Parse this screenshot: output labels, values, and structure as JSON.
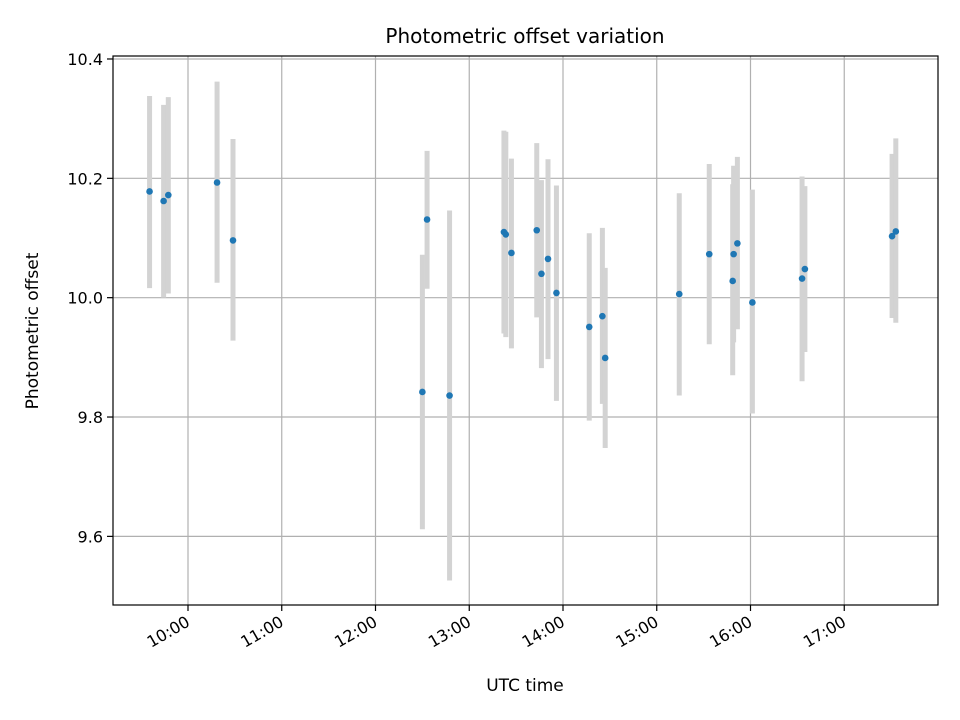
{
  "chart_data": {
    "type": "scatter",
    "title": "Photometric offset variation",
    "xlabel": "UTC time",
    "ylabel": "Photometric offset",
    "x_unit": "UTC hours",
    "xlim": [
      9.2,
      18.0
    ],
    "ylim": [
      9.485,
      10.405
    ],
    "x_ticks": [
      {
        "value": 10,
        "label": "10:00"
      },
      {
        "value": 11,
        "label": "11:00"
      },
      {
        "value": 12,
        "label": "12:00"
      },
      {
        "value": 13,
        "label": "13:00"
      },
      {
        "value": 14,
        "label": "14:00"
      },
      {
        "value": 15,
        "label": "15:00"
      },
      {
        "value": 16,
        "label": "16:00"
      },
      {
        "value": 17,
        "label": "17:00"
      }
    ],
    "y_ticks": [
      {
        "value": 9.6,
        "label": "9.6"
      },
      {
        "value": 9.8,
        "label": "9.8"
      },
      {
        "value": 10.0,
        "label": "10.0"
      },
      {
        "value": 10.2,
        "label": "10.2"
      },
      {
        "value": 10.4,
        "label": "10.4"
      }
    ],
    "grid": true,
    "colors": {
      "point": "#1f77b4",
      "errorbar": "#d3d3d3",
      "grid": "#b0b0b0",
      "axes": "#000000"
    },
    "points": [
      {
        "time": "09:35",
        "x": 9.59,
        "y": 10.178,
        "ylow": 10.016,
        "yhigh": 10.338
      },
      {
        "time": "09:44",
        "x": 9.74,
        "y": 10.162,
        "ylow": 10.0,
        "yhigh": 10.323
      },
      {
        "time": "09:47",
        "x": 9.79,
        "y": 10.172,
        "ylow": 10.007,
        "yhigh": 10.336
      },
      {
        "time": "10:18",
        "x": 10.31,
        "y": 10.193,
        "ylow": 10.025,
        "yhigh": 10.362
      },
      {
        "time": "10:28",
        "x": 10.48,
        "y": 10.096,
        "ylow": 9.928,
        "yhigh": 10.266
      },
      {
        "time": "12:30",
        "x": 12.5,
        "y": 9.842,
        "ylow": 9.612,
        "yhigh": 10.072
      },
      {
        "time": "12:33",
        "x": 12.55,
        "y": 10.131,
        "ylow": 10.015,
        "yhigh": 10.246
      },
      {
        "time": "12:47",
        "x": 12.79,
        "y": 9.836,
        "ylow": 9.526,
        "yhigh": 10.146
      },
      {
        "time": "13:22",
        "x": 13.37,
        "y": 10.11,
        "ylow": 9.94,
        "yhigh": 10.28
      },
      {
        "time": "13:23",
        "x": 13.39,
        "y": 10.106,
        "ylow": 9.934,
        "yhigh": 10.278
      },
      {
        "time": "13:27",
        "x": 13.45,
        "y": 10.075,
        "ylow": 9.915,
        "yhigh": 10.233
      },
      {
        "time": "13:43",
        "x": 13.72,
        "y": 10.113,
        "ylow": 9.967,
        "yhigh": 10.259
      },
      {
        "time": "13:46",
        "x": 13.77,
        "y": 10.04,
        "ylow": 9.882,
        "yhigh": 10.197
      },
      {
        "time": "13:50",
        "x": 13.84,
        "y": 10.065,
        "ylow": 9.897,
        "yhigh": 10.232
      },
      {
        "time": "13:56",
        "x": 13.93,
        "y": 10.008,
        "ylow": 9.827,
        "yhigh": 10.188
      },
      {
        "time": "14:17",
        "x": 14.28,
        "y": 9.951,
        "ylow": 9.794,
        "yhigh": 10.108
      },
      {
        "time": "14:25",
        "x": 14.42,
        "y": 9.969,
        "ylow": 9.822,
        "yhigh": 10.117
      },
      {
        "time": "14:27",
        "x": 14.45,
        "y": 9.899,
        "ylow": 9.748,
        "yhigh": 10.05
      },
      {
        "time": "15:14",
        "x": 15.24,
        "y": 10.006,
        "ylow": 9.836,
        "yhigh": 10.175
      },
      {
        "time": "15:33",
        "x": 15.56,
        "y": 10.073,
        "ylow": 9.922,
        "yhigh": 10.224
      },
      {
        "time": "15:49",
        "x": 15.81,
        "y": 10.028,
        "ylow": 9.87,
        "yhigh": 10.19
      },
      {
        "time": "15:49",
        "x": 15.82,
        "y": 10.073,
        "ylow": 9.925,
        "yhigh": 10.221
      },
      {
        "time": "15:52",
        "x": 15.86,
        "y": 10.091,
        "ylow": 9.947,
        "yhigh": 10.236
      },
      {
        "time": "16:01",
        "x": 16.02,
        "y": 9.992,
        "ylow": 9.806,
        "yhigh": 10.181
      },
      {
        "time": "16:33",
        "x": 16.55,
        "y": 10.032,
        "ylow": 9.86,
        "yhigh": 10.203
      },
      {
        "time": "16:35",
        "x": 16.58,
        "y": 10.048,
        "ylow": 9.909,
        "yhigh": 10.187
      },
      {
        "time": "17:30",
        "x": 17.51,
        "y": 10.103,
        "ylow": 9.966,
        "yhigh": 10.241
      },
      {
        "time": "17:33",
        "x": 17.55,
        "y": 10.111,
        "ylow": 9.958,
        "yhigh": 10.267
      }
    ]
  }
}
